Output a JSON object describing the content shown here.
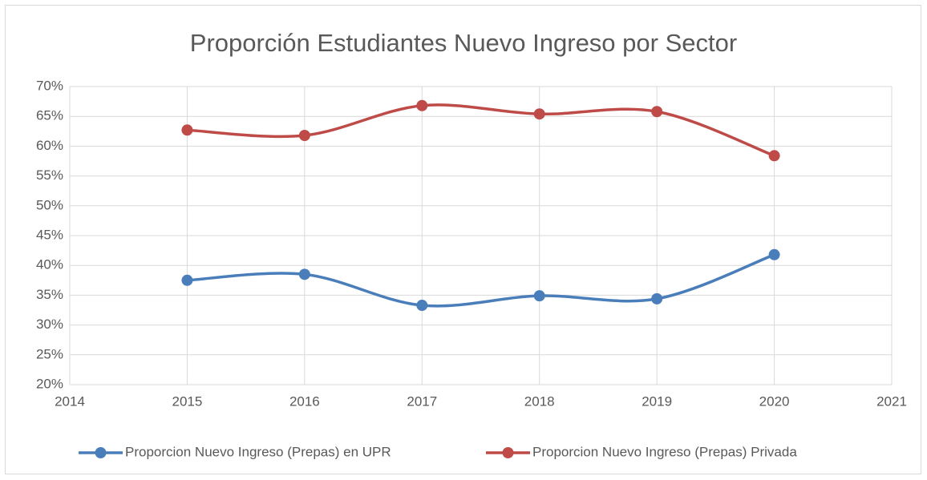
{
  "chart_data": {
    "type": "line",
    "title": "Proporción Estudiantes Nuevo Ingreso por Sector",
    "x": [
      2015,
      2016,
      2017,
      2018,
      2019,
      2020
    ],
    "series": [
      {
        "name": "Proporcion Nuevo Ingreso (Prepas) en UPR",
        "color": "#4a7ebb",
        "values": [
          37.5,
          38.5,
          33.3,
          34.9,
          34.4,
          41.8
        ]
      },
      {
        "name": "Proporcion Nuevo Ingreso (Prepas) Privada",
        "color": "#be4b48",
        "values": [
          62.7,
          61.8,
          66.8,
          65.4,
          65.8,
          58.4
        ]
      }
    ],
    "xlim": [
      2014,
      2021
    ],
    "xticks": [
      2014,
      2015,
      2016,
      2017,
      2018,
      2019,
      2020,
      2021
    ],
    "ylim": [
      20,
      70
    ],
    "yticks": [
      {
        "value": 20,
        "label": "20%"
      },
      {
        "value": 25,
        "label": "25%"
      },
      {
        "value": 30,
        "label": "30%"
      },
      {
        "value": 35,
        "label": "35%"
      },
      {
        "value": 40,
        "label": "40%"
      },
      {
        "value": 45,
        "label": "45%"
      },
      {
        "value": 50,
        "label": "50%"
      },
      {
        "value": 55,
        "label": "55%"
      },
      {
        "value": 60,
        "label": "60%"
      },
      {
        "value": 65,
        "label": "65%"
      },
      {
        "value": 70,
        "label": "70%"
      }
    ],
    "grid": true,
    "smooth": true,
    "legend": "bottom"
  }
}
